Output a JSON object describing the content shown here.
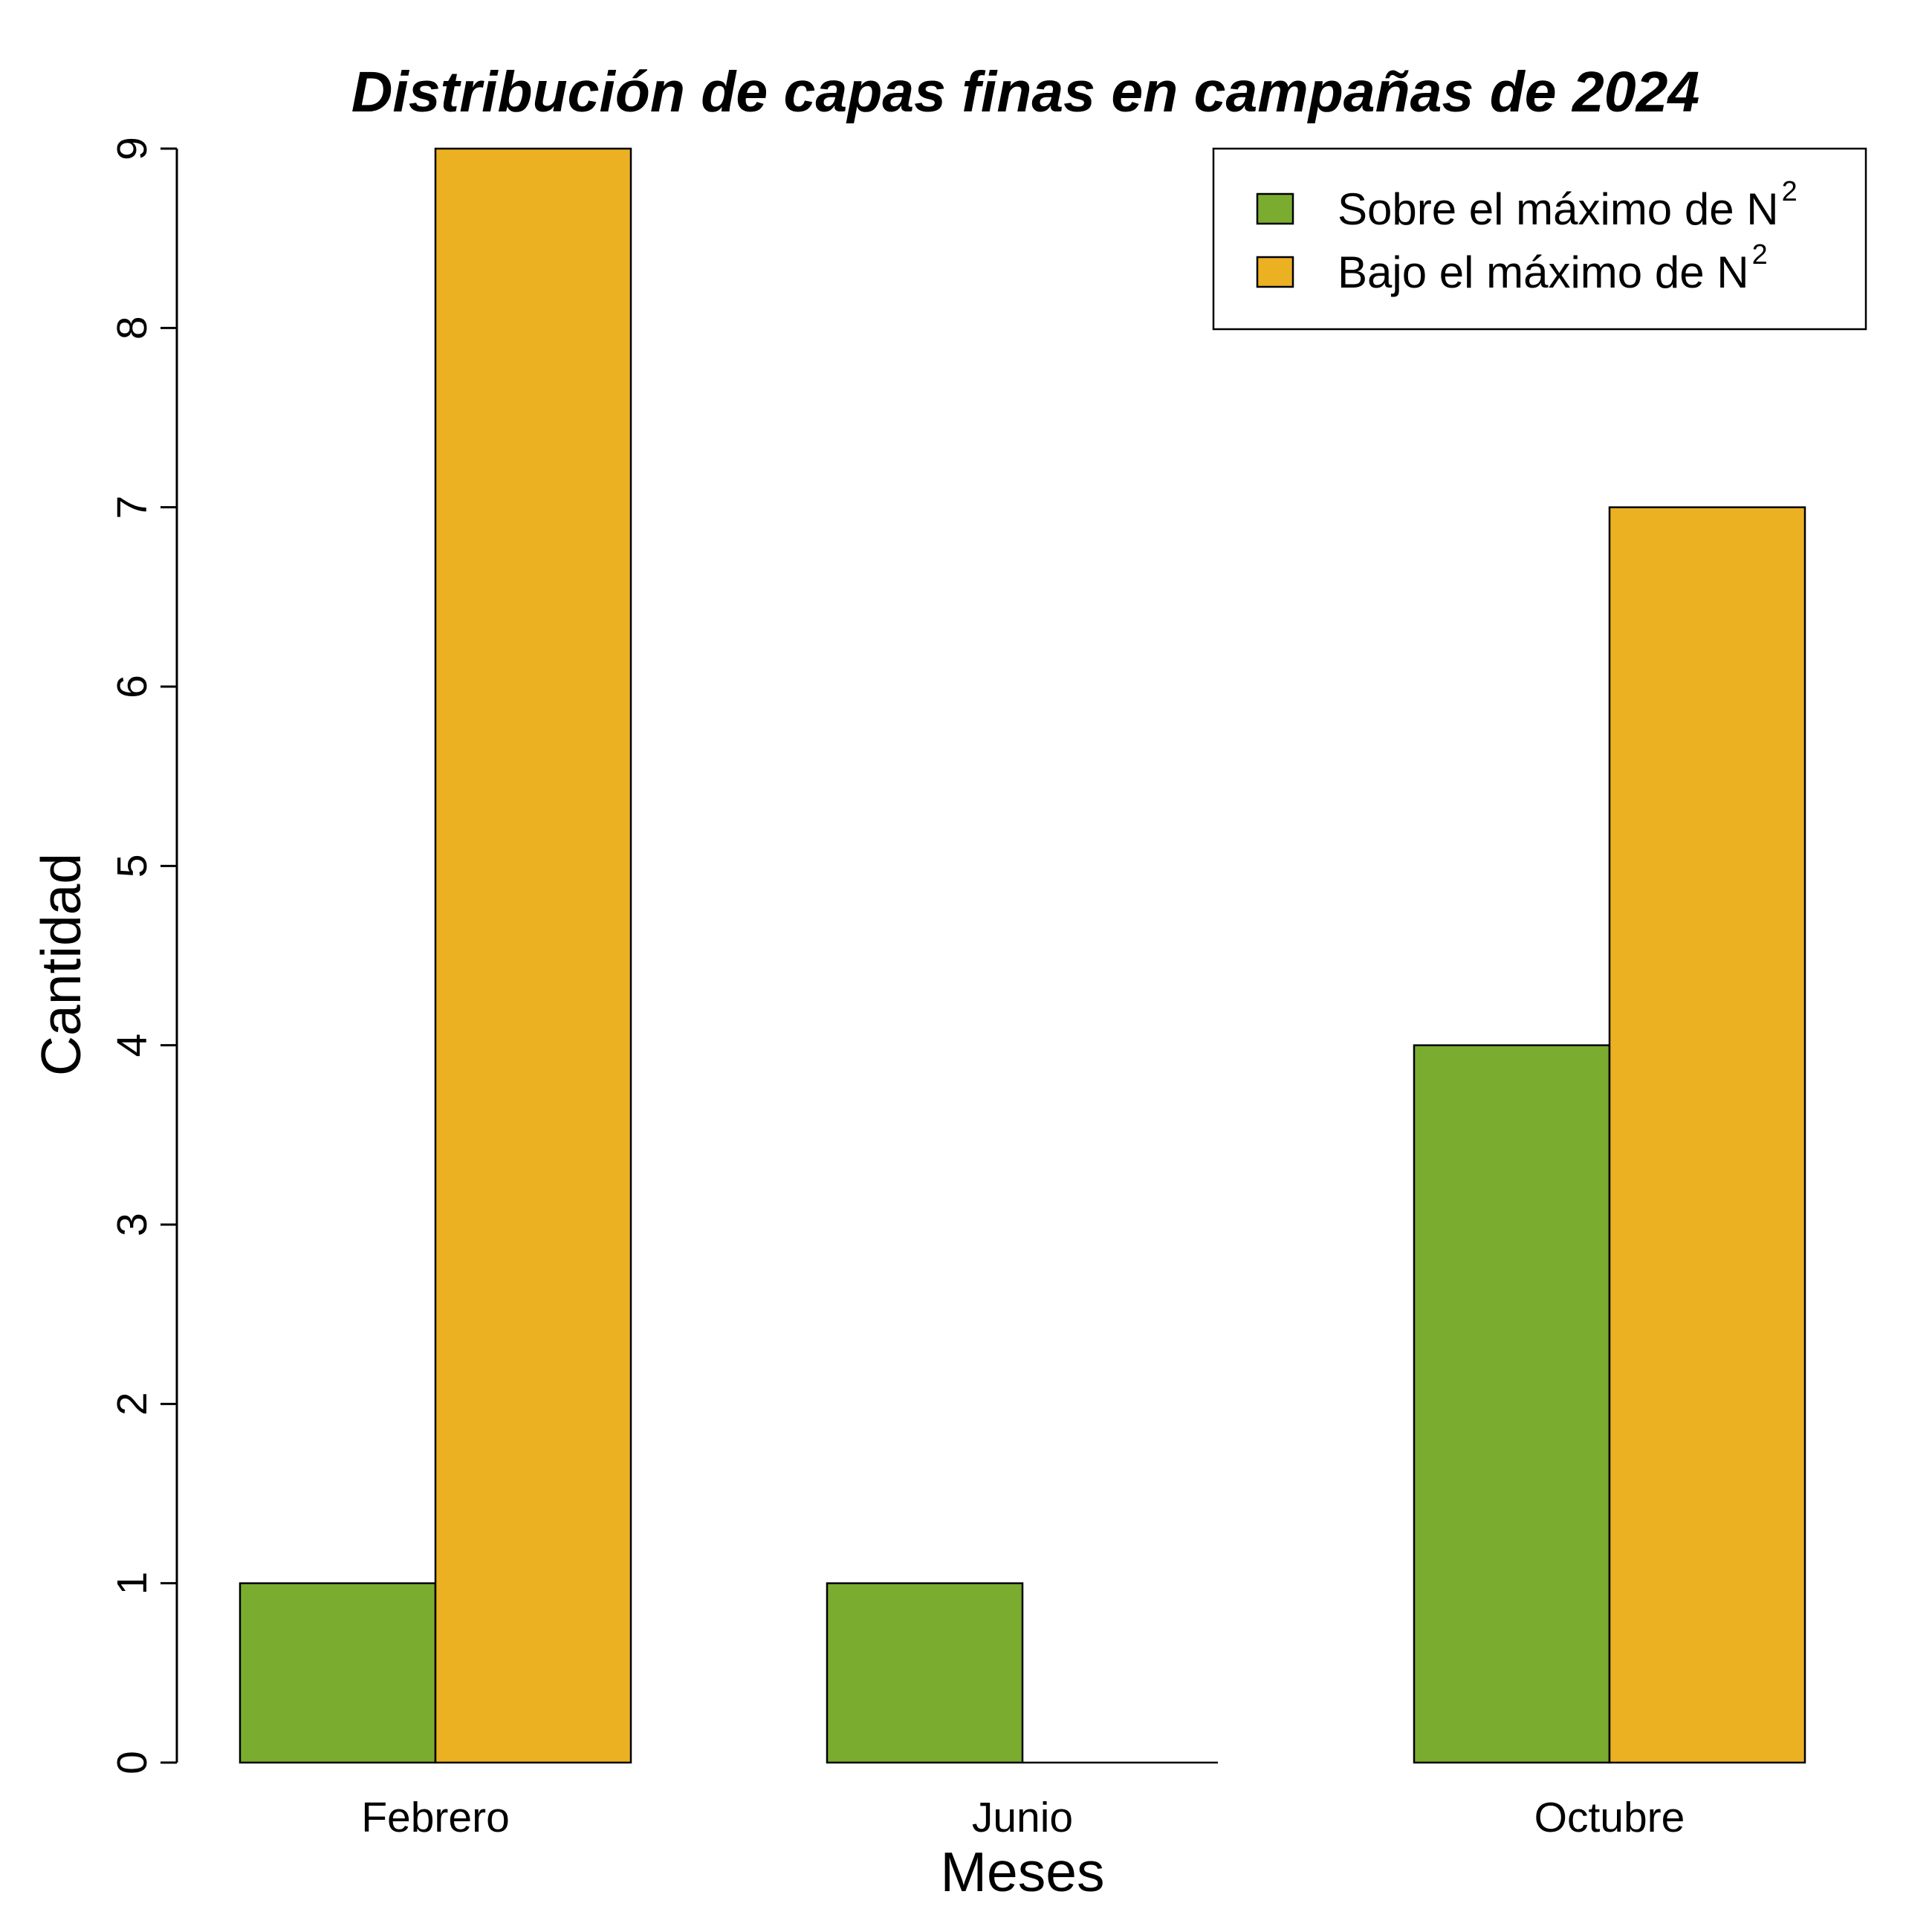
{
  "chart_data": {
    "type": "bar",
    "title": "Distribución de capas finas en campañas de 2024",
    "xlabel": "Meses",
    "ylabel": "Cantidad",
    "categories": [
      "Febrero",
      "Junio",
      "Octubre"
    ],
    "series": [
      {
        "name": "Sobre el máximo de N",
        "name_superscript": "2",
        "color": "#7aac30",
        "values": [
          1,
          1,
          4
        ]
      },
      {
        "name": "Bajo el máximo de N",
        "name_superscript": "2",
        "color": "#ebb122",
        "values": [
          9,
          0,
          7
        ]
      }
    ],
    "ylim": [
      0,
      9
    ],
    "yticks": [
      0,
      1,
      2,
      3,
      4,
      5,
      6,
      7,
      8,
      9
    ],
    "grid": false,
    "legend_position": "top-right"
  }
}
